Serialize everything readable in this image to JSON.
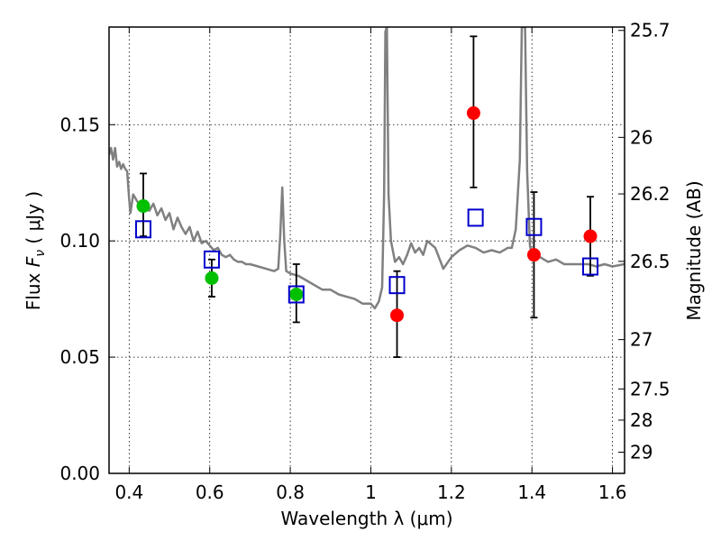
{
  "chart_data": {
    "type": "scatter",
    "xlabel": "Wavelength  λ (μm)",
    "ylabel_prefix": "Flux ",
    "ylabel_symbol": "F",
    "ylabel_sub": "ν",
    "ylabel_suffix": " ( μJy )",
    "ylabel_right": "Magnitude (AB)",
    "xlim": [
      0.35,
      1.63
    ],
    "ylim": [
      0.0,
      0.192
    ],
    "grid": true,
    "x_ticks": [
      {
        "value": 0.4,
        "label": "0.4"
      },
      {
        "value": 0.6,
        "label": "0.6"
      },
      {
        "value": 0.8,
        "label": "0.8"
      },
      {
        "value": 1.0,
        "label": "1"
      },
      {
        "value": 1.2,
        "label": "1.2"
      },
      {
        "value": 1.4,
        "label": "1.4"
      },
      {
        "value": 1.6,
        "label": "1.6"
      }
    ],
    "y_ticks": [
      {
        "value": 0.0,
        "label": "0.00"
      },
      {
        "value": 0.05,
        "label": "0.05"
      },
      {
        "value": 0.1,
        "label": "0.10"
      },
      {
        "value": 0.15,
        "label": "0.15"
      }
    ],
    "right_ticks": [
      {
        "value": 25.7,
        "label": "25.7"
      },
      {
        "value": 26.0,
        "label": "26"
      },
      {
        "value": 26.2,
        "label": "26.2"
      },
      {
        "value": 26.5,
        "label": "26.5"
      },
      {
        "value": 27.0,
        "label": "27"
      },
      {
        "value": 27.5,
        "label": "27.5"
      },
      {
        "value": 28.0,
        "label": "28"
      },
      {
        "value": 29.0,
        "label": "29"
      }
    ],
    "series": [
      {
        "name": "model-spectrum",
        "kind": "line",
        "color": "#808080",
        "points": [
          [
            0.35,
            0.137
          ],
          [
            0.355,
            0.14
          ],
          [
            0.36,
            0.135
          ],
          [
            0.365,
            0.14
          ],
          [
            0.37,
            0.132
          ],
          [
            0.375,
            0.134
          ],
          [
            0.38,
            0.131
          ],
          [
            0.385,
            0.133
          ],
          [
            0.39,
            0.131
          ],
          [
            0.395,
            0.13
          ],
          [
            0.4,
            0.118
          ],
          [
            0.403,
            0.112
          ],
          [
            0.41,
            0.12
          ],
          [
            0.42,
            0.117
          ],
          [
            0.43,
            0.115
          ],
          [
            0.44,
            0.114
          ],
          [
            0.45,
            0.113
          ],
          [
            0.46,
            0.116
          ],
          [
            0.47,
            0.111
          ],
          [
            0.48,
            0.114
          ],
          [
            0.49,
            0.109
          ],
          [
            0.5,
            0.112
          ],
          [
            0.51,
            0.105
          ],
          [
            0.52,
            0.11
          ],
          [
            0.53,
            0.106
          ],
          [
            0.54,
            0.103
          ],
          [
            0.55,
            0.106
          ],
          [
            0.56,
            0.1
          ],
          [
            0.57,
            0.104
          ],
          [
            0.58,
            0.099
          ],
          [
            0.59,
            0.1
          ],
          [
            0.6,
            0.098
          ],
          [
            0.61,
            0.096
          ],
          [
            0.62,
            0.097
          ],
          [
            0.63,
            0.094
          ],
          [
            0.64,
            0.093
          ],
          [
            0.65,
            0.094
          ],
          [
            0.66,
            0.092
          ],
          [
            0.67,
            0.091
          ],
          [
            0.68,
            0.091
          ],
          [
            0.69,
            0.09
          ],
          [
            0.7,
            0.09
          ],
          [
            0.72,
            0.089
          ],
          [
            0.74,
            0.088
          ],
          [
            0.76,
            0.087
          ],
          [
            0.77,
            0.088
          ],
          [
            0.775,
            0.102
          ],
          [
            0.78,
            0.123
          ],
          [
            0.785,
            0.1
          ],
          [
            0.79,
            0.087
          ],
          [
            0.8,
            0.086
          ],
          [
            0.82,
            0.085
          ],
          [
            0.84,
            0.083
          ],
          [
            0.86,
            0.081
          ],
          [
            0.88,
            0.079
          ],
          [
            0.9,
            0.079
          ],
          [
            0.92,
            0.077
          ],
          [
            0.94,
            0.076
          ],
          [
            0.96,
            0.075
          ],
          [
            0.98,
            0.073
          ],
          [
            1.0,
            0.073
          ],
          [
            1.01,
            0.071
          ],
          [
            1.02,
            0.074
          ],
          [
            1.028,
            0.08
          ],
          [
            1.033,
            0.12
          ],
          [
            1.036,
            0.19
          ],
          [
            1.04,
            0.192
          ],
          [
            1.044,
            0.12
          ],
          [
            1.05,
            0.1
          ],
          [
            1.06,
            0.091
          ],
          [
            1.07,
            0.093
          ],
          [
            1.08,
            0.09
          ],
          [
            1.09,
            0.094
          ],
          [
            1.1,
            0.099
          ],
          [
            1.11,
            0.095
          ],
          [
            1.12,
            0.097
          ],
          [
            1.13,
            0.094
          ],
          [
            1.14,
            0.1
          ],
          [
            1.16,
            0.097
          ],
          [
            1.18,
            0.088
          ],
          [
            1.2,
            0.093
          ],
          [
            1.22,
            0.096
          ],
          [
            1.24,
            0.098
          ],
          [
            1.26,
            0.097
          ],
          [
            1.28,
            0.095
          ],
          [
            1.3,
            0.096
          ],
          [
            1.32,
            0.095
          ],
          [
            1.34,
            0.097
          ],
          [
            1.35,
            0.097
          ],
          [
            1.36,
            0.105
          ],
          [
            1.37,
            0.135
          ],
          [
            1.375,
            0.192
          ],
          [
            1.383,
            0.192
          ],
          [
            1.388,
            0.13
          ],
          [
            1.395,
            0.098
          ],
          [
            1.4,
            0.094
          ],
          [
            1.42,
            0.093
          ],
          [
            1.44,
            0.091
          ],
          [
            1.46,
            0.092
          ],
          [
            1.48,
            0.09
          ],
          [
            1.5,
            0.09
          ],
          [
            1.52,
            0.09
          ],
          [
            1.54,
            0.09
          ],
          [
            1.56,
            0.089
          ],
          [
            1.58,
            0.09
          ],
          [
            1.6,
            0.089
          ],
          [
            1.63,
            0.09
          ]
        ]
      },
      {
        "name": "observed-flux-green",
        "kind": "points",
        "color": "#00c000",
        "points": [
          {
            "x": 0.435,
            "y": 0.115,
            "yerr_low": 0.102,
            "yerr_high": 0.129
          },
          {
            "x": 0.605,
            "y": 0.084,
            "yerr_low": 0.076,
            "yerr_high": 0.092
          },
          {
            "x": 0.815,
            "y": 0.077,
            "yerr_low": 0.065,
            "yerr_high": 0.09
          }
        ]
      },
      {
        "name": "observed-flux-red",
        "kind": "points",
        "color": "#ff0000",
        "points": [
          {
            "x": 1.065,
            "y": 0.068,
            "yerr_low": 0.05,
            "yerr_high": 0.087
          },
          {
            "x": 1.255,
            "y": 0.155,
            "yerr_low": 0.123,
            "yerr_high": 0.188
          },
          {
            "x": 1.405,
            "y": 0.094,
            "yerr_low": 0.067,
            "yerr_high": 0.121
          },
          {
            "x": 1.545,
            "y": 0.102,
            "yerr_low": 0.085,
            "yerr_high": 0.119
          }
        ]
      },
      {
        "name": "model-photometry",
        "kind": "open-squares",
        "color": "#0000cc",
        "points": [
          {
            "x": 0.435,
            "y": 0.105
          },
          {
            "x": 0.605,
            "y": 0.092
          },
          {
            "x": 0.815,
            "y": 0.077
          },
          {
            "x": 1.065,
            "y": 0.081
          },
          {
            "x": 1.26,
            "y": 0.11
          },
          {
            "x": 1.405,
            "y": 0.106
          },
          {
            "x": 1.545,
            "y": 0.089
          }
        ]
      }
    ]
  }
}
